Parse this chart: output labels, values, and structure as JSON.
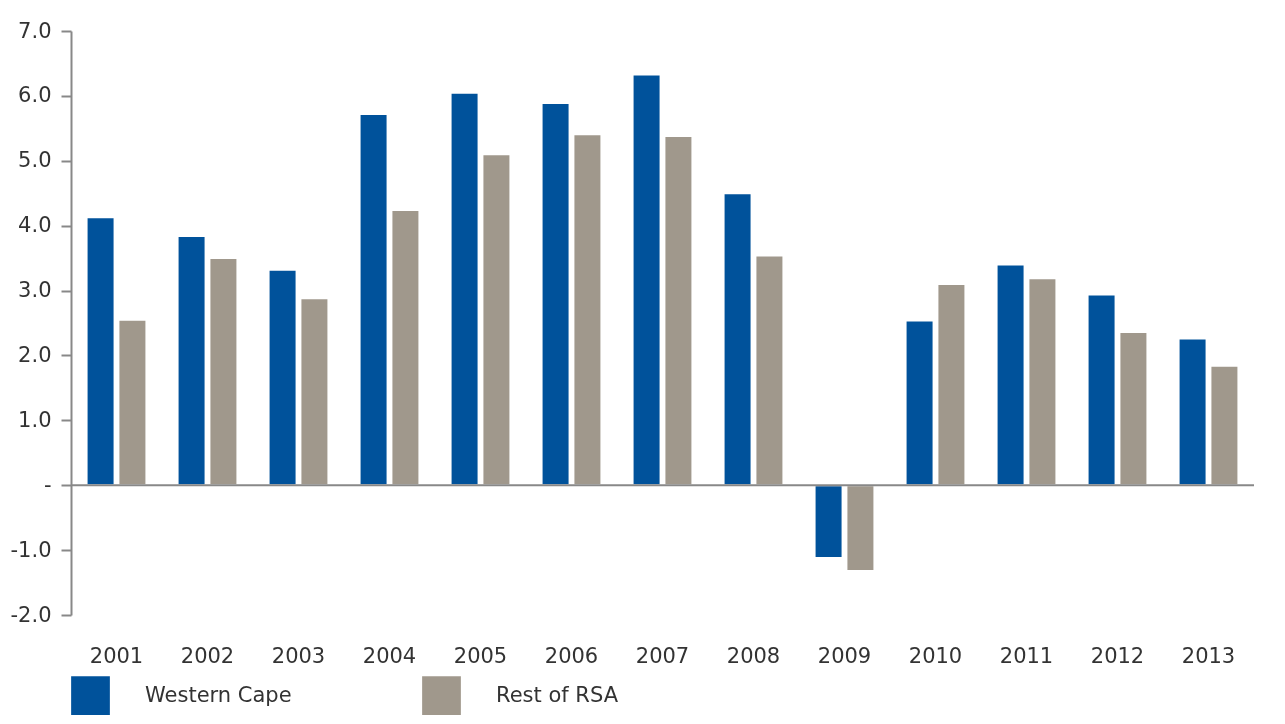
{
  "chart_data": {
    "type": "bar",
    "categories": [
      "2001",
      "2002",
      "2003",
      "2004",
      "2005",
      "2006",
      "2007",
      "2008",
      "2009",
      "2010",
      "2011",
      "2012",
      "2013"
    ],
    "series": [
      {
        "name": "Western Cape",
        "color": "#00529b",
        "values": [
          4.13,
          3.84,
          3.32,
          5.72,
          6.05,
          5.89,
          6.33,
          4.5,
          -1.12,
          2.54,
          3.4,
          2.94,
          2.26
        ]
      },
      {
        "name": "Rest of RSA",
        "color": "#a0988c",
        "values": [
          2.55,
          3.5,
          2.88,
          4.24,
          5.1,
          5.41,
          5.38,
          3.54,
          -1.32,
          3.1,
          3.19,
          2.36,
          1.84
        ]
      }
    ],
    "ylim": [
      -2,
      7
    ],
    "yticks": [
      {
        "value": -2,
        "label": "-2.0"
      },
      {
        "value": -1,
        "label": "-1.0"
      },
      {
        "value": 0,
        "label": "-"
      },
      {
        "value": 1,
        "label": "1.0"
      },
      {
        "value": 2,
        "label": "2.0"
      },
      {
        "value": 3,
        "label": "3.0"
      },
      {
        "value": 4,
        "label": "4.0"
      },
      {
        "value": 5,
        "label": "5.0"
      },
      {
        "value": 6,
        "label": "6.0"
      },
      {
        "value": 7,
        "label": "7.0"
      }
    ],
    "legend": "bottom"
  }
}
